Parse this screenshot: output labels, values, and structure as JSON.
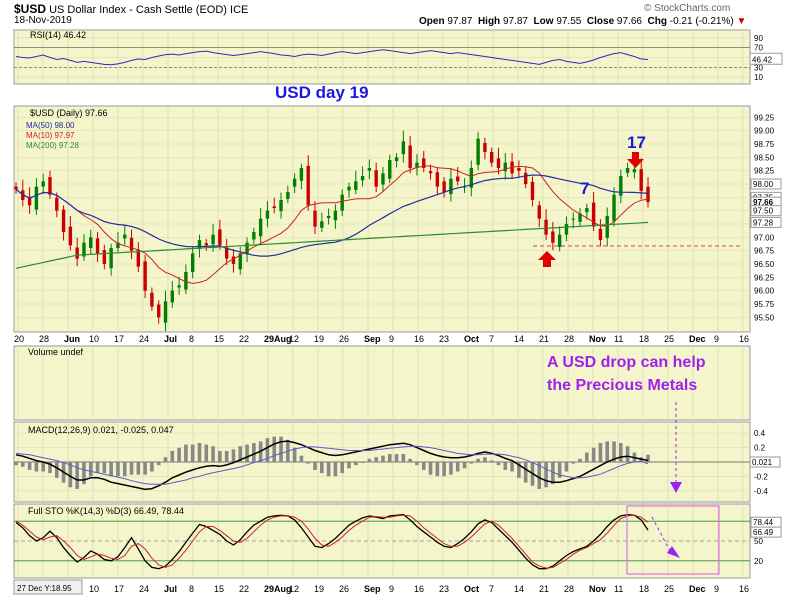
{
  "header": {
    "symbol": "$USD",
    "description": "US Dollar Index - Cash Settle (EOD)",
    "exchange": "ICE",
    "date": "18-Nov-2019",
    "open_label": "Open",
    "open": "97.87",
    "high_label": "High",
    "high": "97.87",
    "low_label": "Low",
    "low": "97.55",
    "close_label": "Close",
    "close": "97.66",
    "chg_label": "Chg",
    "chg": "-0.21 (-0.21%)",
    "watermark": "© StockCharts.com"
  },
  "colors": {
    "bg": "#f5f5cc",
    "up": "#008000",
    "down": "#cc0000",
    "ma50": "#1f2f9e",
    "ma10": "#cc2222",
    "ma200": "#2e8b2e",
    "annotation_blue": "#1a1adc",
    "annotation_purple": "#a020f0"
  },
  "chart_data": [
    {
      "type": "line",
      "panel": "rsi",
      "title": "RSI(14) 46.42",
      "ylim": [
        0,
        100
      ],
      "yticks": [
        10,
        30,
        50,
        70,
        90
      ],
      "levels": [
        30,
        70
      ],
      "last_value_label": "46.42",
      "series": [
        {
          "name": "RSI(14)",
          "values": [
            52,
            50,
            49,
            52,
            55,
            50,
            46,
            48,
            44,
            40,
            42,
            40,
            38,
            36,
            35,
            37,
            40,
            44,
            47,
            46,
            50,
            53,
            56,
            57,
            55,
            58,
            60,
            62,
            63,
            60,
            58,
            56,
            54,
            56,
            58,
            60,
            62,
            60,
            58,
            55,
            54,
            52,
            55,
            57,
            56,
            54,
            57,
            60,
            62,
            60,
            58,
            60,
            62,
            64,
            66,
            64,
            62,
            60,
            58,
            60,
            62,
            64,
            62,
            60,
            58,
            60,
            58,
            56,
            54,
            52,
            50,
            48,
            46,
            44,
            42,
            40,
            38,
            36,
            40,
            44,
            46,
            42,
            40,
            38,
            41,
            45,
            50,
            54,
            58,
            60,
            56,
            52,
            47,
            46
          ]
        }
      ]
    },
    {
      "type": "candlestick",
      "panel": "price",
      "title": "$USD (Daily) 97.66",
      "ylim": [
        95.3,
        99.35
      ],
      "yticks": [
        95.5,
        95.75,
        96,
        96.25,
        96.5,
        96.75,
        97,
        97.25,
        97.5,
        97.75,
        98,
        98.25,
        98.5,
        98.75,
        99,
        99.25
      ],
      "axis_value_labels": [
        "98.00",
        "97.75",
        "97.66",
        "97.50",
        "97.28"
      ],
      "legend": [
        {
          "name": "MA(50) 98.00",
          "color": "#1f2f9e"
        },
        {
          "name": "MA(10) 97.97",
          "color": "#cc2222"
        },
        {
          "name": "MA(200) 97.28",
          "color": "#2e8b2e"
        }
      ],
      "x_tick_labels": [
        "20",
        "28",
        "Jun",
        "10",
        "17",
        "24",
        "Jul",
        "8",
        "15",
        "22",
        "29Aug",
        "12",
        "19",
        "26",
        "Sep",
        "9",
        "16",
        "23",
        "Oct",
        "7",
        "14",
        "21",
        "28",
        "Nov",
        "11",
        "18",
        "25",
        "Dec",
        "9",
        "16"
      ],
      "close": [
        97.9,
        97.7,
        97.6,
        97.95,
        98.05,
        97.8,
        97.5,
        97.1,
        96.85,
        96.6,
        96.9,
        97.0,
        96.7,
        96.5,
        96.8,
        96.9,
        97.05,
        96.75,
        96.45,
        96.0,
        95.7,
        95.5,
        95.8,
        96.0,
        96.1,
        96.35,
        96.7,
        96.95,
        96.85,
        97.05,
        96.85,
        96.6,
        96.5,
        96.7,
        96.9,
        97.1,
        97.35,
        97.5,
        97.55,
        97.7,
        97.85,
        98.1,
        98.3,
        97.6,
        97.2,
        97.3,
        97.4,
        97.5,
        97.8,
        97.95,
        98.05,
        98.15,
        98.3,
        97.95,
        98.2,
        98.45,
        98.5,
        98.8,
        98.3,
        98.4,
        98.3,
        98.2,
        97.95,
        97.85,
        98.1,
        98.05,
        97.95,
        98.3,
        98.85,
        98.6,
        98.4,
        98.3,
        98.4,
        98.2,
        98.25,
        98.0,
        97.7,
        97.35,
        97.05,
        96.9,
        97.05,
        97.25,
        97.35,
        97.45,
        97.55,
        97.2,
        96.95,
        97.4,
        97.8,
        98.15,
        98.3,
        98.28,
        97.87,
        97.66
      ]
    },
    {
      "type": "bar",
      "panel": "volume",
      "title": "Volume undef",
      "values": []
    },
    {
      "type": "line",
      "panel": "macd",
      "title": "MACD(12,26,9) 0.021, -0.025, 0.047",
      "ylim": [
        -0.5,
        0.5
      ],
      "yticks": [
        0.4,
        0.2,
        0.0,
        -0.2,
        -0.4
      ],
      "last_value_label": "0.021",
      "series": [
        {
          "name": "MACD(12,26,9)",
          "values": [
            0.1,
            0.08,
            0.05,
            0.02,
            0.0,
            -0.03,
            -0.08,
            -0.14,
            -0.2,
            -0.25,
            -0.25,
            -0.22,
            -0.22,
            -0.24,
            -0.28,
            -0.3,
            -0.32,
            -0.34,
            -0.36,
            -0.38,
            -0.37,
            -0.33,
            -0.28,
            -0.22,
            -0.18,
            -0.14,
            -0.11,
            -0.08,
            -0.06,
            -0.05,
            -0.06,
            -0.04,
            -0.01,
            0.03,
            0.07,
            0.11,
            0.15,
            0.2,
            0.25,
            0.28,
            0.29,
            0.27,
            0.24,
            0.2,
            0.16,
            0.13,
            0.1,
            0.09,
            0.1,
            0.12,
            0.14,
            0.16,
            0.18,
            0.2,
            0.22,
            0.24,
            0.25,
            0.26,
            0.24,
            0.2,
            0.16,
            0.12,
            0.09,
            0.07,
            0.06,
            0.06,
            0.07,
            0.09,
            0.12,
            0.14,
            0.12,
            0.09,
            0.05,
            0.02,
            -0.04,
            -0.1,
            -0.16,
            -0.22,
            -0.26,
            -0.28,
            -0.28,
            -0.26,
            -0.23,
            -0.2,
            -0.15,
            -0.1,
            -0.05,
            0.0,
            0.04,
            0.07,
            0.08,
            0.06,
            0.04,
            0.021
          ]
        },
        {
          "name": "signal",
          "values": [
            0.12,
            0.11,
            0.1,
            0.08,
            0.06,
            0.04,
            0.02,
            -0.01,
            -0.04,
            -0.08,
            -0.11,
            -0.13,
            -0.15,
            -0.17,
            -0.19,
            -0.21,
            -0.23,
            -0.26,
            -0.28,
            -0.3,
            -0.31,
            -0.31,
            -0.31,
            -0.29,
            -0.27,
            -0.25,
            -0.22,
            -0.2,
            -0.17,
            -0.15,
            -0.13,
            -0.11,
            -0.09,
            -0.07,
            -0.04,
            -0.01,
            0.02,
            0.05,
            0.09,
            0.12,
            0.15,
            0.18,
            0.2,
            0.21,
            0.21,
            0.2,
            0.19,
            0.18,
            0.17,
            0.16,
            0.16,
            0.16,
            0.16,
            0.17,
            0.18,
            0.19,
            0.2,
            0.21,
            0.22,
            0.22,
            0.21,
            0.2,
            0.18,
            0.16,
            0.14,
            0.12,
            0.11,
            0.1,
            0.1,
            0.11,
            0.11,
            0.11,
            0.1,
            0.08,
            0.06,
            0.03,
            -0.01,
            -0.05,
            -0.1,
            -0.14,
            -0.18,
            -0.2,
            -0.22,
            -0.22,
            -0.21,
            -0.19,
            -0.17,
            -0.13,
            -0.09,
            -0.05,
            -0.02,
            0.0,
            0.01,
            -0.025
          ]
        }
      ]
    },
    {
      "type": "line",
      "panel": "stochastic",
      "title": "Full STO %K(14,3) %D(3) 66.49, 78.44",
      "ylim": [
        0,
        100
      ],
      "yticks": [
        80,
        50,
        20
      ],
      "levels": [
        20,
        80
      ],
      "axis_value_labels": [
        "78.44",
        "66.49"
      ],
      "series": [
        {
          "name": "%K(14,3)",
          "values": [
            78,
            70,
            58,
            50,
            55,
            65,
            55,
            40,
            28,
            18,
            25,
            35,
            30,
            22,
            20,
            26,
            40,
            55,
            38,
            20,
            10,
            8,
            12,
            22,
            34,
            48,
            62,
            75,
            72,
            66,
            60,
            50,
            44,
            52,
            64,
            74,
            80,
            86,
            88,
            89,
            88,
            82,
            70,
            56,
            42,
            40,
            46,
            54,
            64,
            74,
            80,
            85,
            88,
            86,
            84,
            88,
            89,
            90,
            82,
            72,
            64,
            56,
            48,
            42,
            40,
            46,
            54,
            64,
            76,
            82,
            78,
            68,
            58,
            48,
            36,
            24,
            14,
            8,
            8,
            12,
            20,
            28,
            34,
            38,
            42,
            50,
            60,
            72,
            82,
            88,
            90,
            89,
            82,
            66.49
          ]
        },
        {
          "name": "%D(3)",
          "values": [
            80,
            74,
            65,
            56,
            52,
            56,
            58,
            50,
            40,
            28,
            22,
            26,
            30,
            28,
            24,
            22,
            28,
            42,
            46,
            38,
            24,
            14,
            10,
            14,
            24,
            36,
            50,
            64,
            72,
            72,
            66,
            58,
            50,
            48,
            54,
            64,
            74,
            82,
            86,
            88,
            88,
            86,
            80,
            68,
            54,
            44,
            42,
            48,
            56,
            66,
            74,
            80,
            86,
            87,
            86,
            86,
            88,
            89,
            88,
            80,
            70,
            62,
            54,
            46,
            42,
            42,
            48,
            56,
            66,
            76,
            80,
            74,
            64,
            54,
            42,
            30,
            18,
            12,
            9,
            10,
            16,
            22,
            30,
            36,
            40,
            46,
            52,
            62,
            74,
            84,
            88,
            89,
            86,
            78.44
          ]
        }
      ]
    }
  ],
  "annotations": {
    "usd_day": "USD day 19",
    "num_17": "17",
    "num_7": "7",
    "drop_line1": "A USD drop can help",
    "drop_line2": "the Precious Metals"
  },
  "footer": {
    "cursor_label": "27 Dec Y:18.95"
  }
}
